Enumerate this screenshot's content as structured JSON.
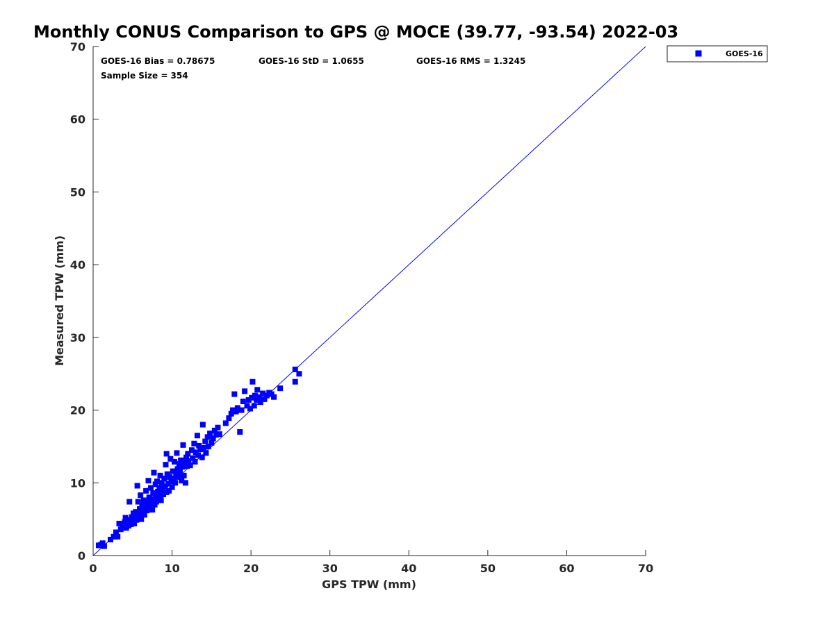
{
  "chart_data": {
    "type": "scatter",
    "title": "Monthly CONUS Comparison to GPS @ MOCE (39.77, -93.54) 2022-03",
    "xlabel": "GPS TPW (mm)",
    "ylabel": "Measured TPW (mm)",
    "xlim": [
      0,
      70
    ],
    "ylim": [
      0,
      70
    ],
    "xticks": [
      "0",
      "10",
      "20",
      "30",
      "40",
      "50",
      "60",
      "70"
    ],
    "yticks": [
      "0",
      "10",
      "20",
      "30",
      "40",
      "50",
      "60",
      "70"
    ],
    "grid": false,
    "legend_position": "outside-top-right",
    "reference_line": {
      "x": [
        0,
        70
      ],
      "y": [
        0,
        70
      ],
      "color": "#0000ff"
    },
    "stats": {
      "bias": "GOES-16 Bias = 0.78675",
      "std": "GOES-16 StD = 1.0655",
      "rms": "GOES-16 RMS = 1.3245",
      "sample": "Sample Size = 354"
    },
    "series": [
      {
        "name": "GOES-16",
        "color": "#0000ff",
        "marker": "square",
        "points": [
          [
            0.7,
            1.4
          ],
          [
            1.0,
            1.5
          ],
          [
            1.2,
            1.7
          ],
          [
            1.4,
            1.3
          ],
          [
            2.2,
            2.2
          ],
          [
            2.6,
            2.6
          ],
          [
            2.9,
            3.2
          ],
          [
            3.1,
            2.6
          ],
          [
            3.3,
            4.4
          ],
          [
            3.5,
            3.6
          ],
          [
            3.7,
            3.9
          ],
          [
            3.9,
            4.2
          ],
          [
            4.0,
            4.6
          ],
          [
            4.1,
            5.2
          ],
          [
            4.2,
            3.8
          ],
          [
            4.3,
            4.4
          ],
          [
            4.5,
            4.1
          ],
          [
            4.6,
            7.4
          ],
          [
            4.7,
            4.9
          ],
          [
            4.8,
            4.3
          ],
          [
            4.9,
            5.3
          ],
          [
            5.0,
            4.6
          ],
          [
            5.1,
            5.8
          ],
          [
            5.2,
            4.4
          ],
          [
            5.3,
            5.1
          ],
          [
            5.4,
            6.0
          ],
          [
            5.5,
            4.9
          ],
          [
            5.6,
            9.6
          ],
          [
            5.6,
            5.5
          ],
          [
            5.7,
            7.4
          ],
          [
            5.8,
            5.2
          ],
          [
            5.9,
            6.4
          ],
          [
            6.0,
            5.7
          ],
          [
            6.0,
            8.3
          ],
          [
            6.1,
            5.0
          ],
          [
            6.2,
            6.9
          ],
          [
            6.3,
            6.1
          ],
          [
            6.4,
            7.6
          ],
          [
            6.5,
            5.6
          ],
          [
            6.6,
            6.6
          ],
          [
            6.7,
            8.9
          ],
          [
            6.8,
            6.2
          ],
          [
            6.9,
            7.3
          ],
          [
            7.0,
            10.3
          ],
          [
            7.0,
            6.6
          ],
          [
            7.1,
            8.0
          ],
          [
            7.2,
            6.8
          ],
          [
            7.3,
            9.3
          ],
          [
            7.4,
            7.4
          ],
          [
            7.5,
            6.3
          ],
          [
            7.6,
            8.6
          ],
          [
            7.7,
            11.4
          ],
          [
            7.7,
            7.8
          ],
          [
            7.8,
            7.0
          ],
          [
            7.9,
            9.8
          ],
          [
            8.0,
            8.3
          ],
          [
            8.0,
            7.4
          ],
          [
            8.1,
            10.2
          ],
          [
            8.2,
            8.8
          ],
          [
            8.3,
            7.8
          ],
          [
            8.4,
            9.3
          ],
          [
            8.5,
            11.0
          ],
          [
            8.5,
            8.3
          ],
          [
            8.6,
            7.6
          ],
          [
            8.7,
            10.0
          ],
          [
            8.8,
            9.0
          ],
          [
            8.9,
            8.4
          ],
          [
            9.0,
            10.6
          ],
          [
            9.1,
            9.5
          ],
          [
            9.2,
            12.5
          ],
          [
            9.3,
            8.7
          ],
          [
            9.3,
            14.0
          ],
          [
            9.4,
            11.2
          ],
          [
            9.5,
            9.9
          ],
          [
            9.6,
            8.9
          ],
          [
            9.7,
            10.8
          ],
          [
            9.8,
            13.3
          ],
          [
            9.9,
            10.2
          ],
          [
            10.0,
            9.4
          ],
          [
            10.1,
            11.6
          ],
          [
            10.2,
            10.6
          ],
          [
            10.3,
            12.9
          ],
          [
            10.4,
            10.0
          ],
          [
            10.5,
            11.3
          ],
          [
            10.6,
            14.1
          ],
          [
            10.7,
            11.9
          ],
          [
            10.8,
            10.8
          ],
          [
            10.9,
            12.6
          ],
          [
            11.0,
            11.5
          ],
          [
            11.1,
            13.1
          ],
          [
            11.2,
            10.3
          ],
          [
            11.3,
            12.2
          ],
          [
            11.4,
            15.2
          ],
          [
            11.5,
            11.0
          ],
          [
            11.6,
            12.8
          ],
          [
            11.7,
            10.0
          ],
          [
            11.8,
            13.5
          ],
          [
            11.9,
            12.3
          ],
          [
            12.0,
            14.0
          ],
          [
            12.1,
            13.0
          ],
          [
            12.3,
            12.4
          ],
          [
            12.5,
            14.5
          ],
          [
            12.6,
            13.4
          ],
          [
            12.8,
            15.4
          ],
          [
            12.9,
            12.9
          ],
          [
            13.0,
            14.2
          ],
          [
            13.2,
            16.5
          ],
          [
            13.3,
            13.8
          ],
          [
            13.4,
            15.1
          ],
          [
            13.6,
            14.6
          ],
          [
            13.8,
            13.5
          ],
          [
            13.9,
            18.0
          ],
          [
            14.0,
            14.8
          ],
          [
            14.2,
            15.7
          ],
          [
            14.3,
            14.1
          ],
          [
            14.5,
            16.3
          ],
          [
            14.6,
            15.0
          ],
          [
            14.8,
            16.8
          ],
          [
            15.0,
            15.5
          ],
          [
            15.2,
            16.1
          ],
          [
            15.4,
            17.2
          ],
          [
            15.6,
            16.6
          ],
          [
            15.8,
            17.6
          ],
          [
            16.0,
            16.7
          ],
          [
            16.8,
            18.2
          ],
          [
            17.2,
            18.9
          ],
          [
            17.5,
            19.5
          ],
          [
            17.7,
            20.0
          ],
          [
            17.9,
            22.2
          ],
          [
            18.1,
            19.8
          ],
          [
            18.3,
            20.3
          ],
          [
            18.6,
            17.0
          ],
          [
            18.8,
            20.0
          ],
          [
            19.0,
            21.2
          ],
          [
            19.2,
            22.6
          ],
          [
            19.5,
            20.6
          ],
          [
            19.7,
            21.4
          ],
          [
            19.9,
            20.2
          ],
          [
            20.1,
            21.7
          ],
          [
            20.2,
            23.9
          ],
          [
            20.4,
            20.6
          ],
          [
            20.5,
            22.0
          ],
          [
            20.7,
            21.4
          ],
          [
            20.8,
            22.8
          ],
          [
            21.0,
            21.8
          ],
          [
            21.2,
            21.1
          ],
          [
            21.5,
            22.3
          ],
          [
            21.7,
            21.5
          ],
          [
            22.0,
            22.0
          ],
          [
            22.3,
            22.4
          ],
          [
            22.6,
            22.2
          ],
          [
            22.9,
            21.8
          ],
          [
            23.7,
            23.0
          ],
          [
            25.6,
            25.6
          ],
          [
            25.6,
            23.9
          ],
          [
            26.1,
            25.0
          ]
        ]
      }
    ]
  }
}
